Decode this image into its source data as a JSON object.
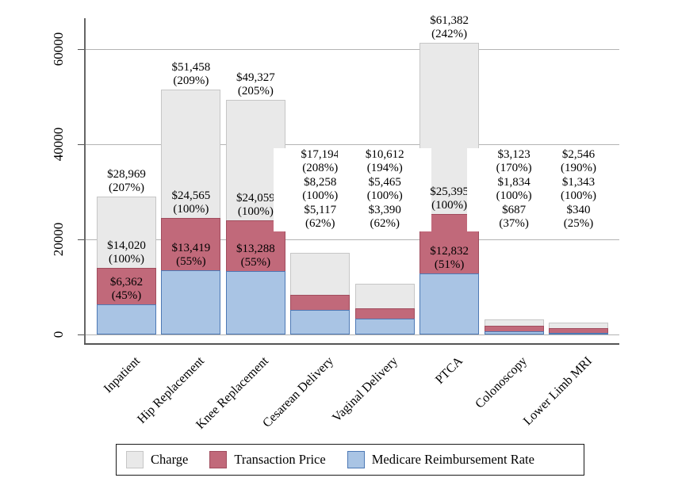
{
  "chart_data": {
    "type": "bar",
    "subtype": "overlaid-bars",
    "title": "",
    "xlabel": "",
    "ylabel": "",
    "ylim": [
      0,
      65000
    ],
    "yticks": [
      0,
      20000,
      40000,
      60000
    ],
    "ytick_labels": [
      "0",
      "20000",
      "40000",
      "60000"
    ],
    "grid": "horizontal",
    "categories": [
      "Inpatient",
      "Hip Replacement",
      "Knee Replacement",
      "Cesarean Delivery",
      "Vaginal Delivery",
      "PTCA",
      "Colonoscopy",
      "Lower Limb MRI"
    ],
    "label_layout": [
      "inline",
      "inline",
      "inline",
      "stack",
      "stack",
      "inline",
      "stack",
      "stack"
    ],
    "series": [
      {
        "name": "Charge",
        "color": "#e9e9e9",
        "border_color": "#c6c6c6",
        "values": [
          28969,
          51458,
          49327,
          17194,
          10612,
          61382,
          3123,
          2546
        ],
        "labels": [
          "$28,969",
          "$51,458",
          "$49,327",
          "$17,194",
          "$10,612",
          "$61,382",
          "$3,123",
          "$2,546"
        ],
        "pct_labels": [
          "(207%)",
          "(209%)",
          "(205%)",
          "(208%)",
          "(194%)",
          "(242%)",
          "(170%)",
          "(190%)"
        ]
      },
      {
        "name": "Transaction Price",
        "color": "#c1697a",
        "border_color": "#a04d5e",
        "values": [
          14020,
          24565,
          24059,
          8258,
          5465,
          25395,
          1834,
          1343
        ],
        "labels": [
          "$14,020",
          "$24,565",
          "$24,059",
          "$8,258",
          "$5,465",
          "$25,395",
          "$1,834",
          "$1,343"
        ],
        "pct_labels": [
          "(100%)",
          "(100%)",
          "(100%)",
          "(100%)",
          "(100%)",
          "(100%)",
          "(100%)",
          "(100%)"
        ]
      },
      {
        "name": "Medicare Reimbursement Rate",
        "color": "#a9c4e4",
        "border_color": "#4d79b5",
        "values": [
          6362,
          13419,
          13288,
          5117,
          3390,
          12832,
          687,
          340
        ],
        "labels": [
          "$6,362",
          "$13,419",
          "$13,288",
          "$5,117",
          "$3,390",
          "$12,832",
          "$687",
          "$340"
        ],
        "pct_labels": [
          "(45%)",
          "(55%)",
          "(55%)",
          "(62%)",
          "(62%)",
          "(51%)",
          "(37%)",
          "(25%)"
        ]
      }
    ],
    "legend": {
      "position": "bottom",
      "items": [
        {
          "label": "Charge",
          "color": "#e9e9e9",
          "border_color": "#c6c6c6"
        },
        {
          "label": "Transaction Price",
          "color": "#c1697a",
          "border_color": "#a04d5e"
        },
        {
          "label": "Medicare Reimbursement Rate",
          "color": "#a9c4e4",
          "border_color": "#4d79b5"
        }
      ]
    }
  }
}
